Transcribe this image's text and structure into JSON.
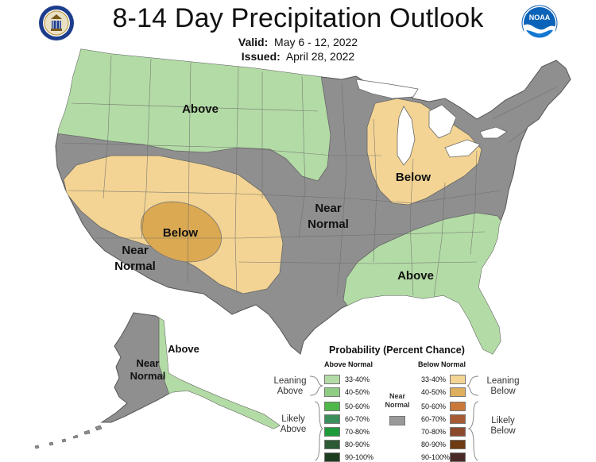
{
  "header": {
    "title": "8-14 Day Precipitation Outlook",
    "valid_label": "Valid:",
    "valid_value": "May 6 - 12, 2022",
    "issued_label": "Issued:",
    "issued_value": "April 28, 2022",
    "left_logo": "doc-seal-icon",
    "right_logo": "noaa-logo-icon"
  },
  "map": {
    "labels": {
      "above_north": "Above",
      "below_west": "Below",
      "near_normal_center_1": "Near",
      "near_normal_center_2": "Normal",
      "below_great_lakes": "Below",
      "near_normal_west_1": "Near",
      "near_normal_west_2": "Normal",
      "above_southeast": "Above",
      "above_alaska": "Above",
      "near_normal_alaska_1": "Near",
      "near_normal_alaska_2": "Normal"
    },
    "colors": {
      "near_normal": "#8f8f8f",
      "above_33_40": "#b3dba6",
      "below_33_40": "#f3d494",
      "below_40_50": "#dba952",
      "water": "#ffffff",
      "borders": "#666666"
    }
  },
  "legend": {
    "title": "Probability (Percent Chance)",
    "above_header": "Above Normal",
    "below_header": "Below Normal",
    "near_label_1": "Near",
    "near_label_2": "Normal",
    "near_color": "#999999",
    "leaning_above_1": "Leaning",
    "leaning_above_2": "Above",
    "likely_above_1": "Likely",
    "likely_above_2": "Above",
    "leaning_below_1": "Leaning",
    "leaning_below_2": "Below",
    "likely_below_1": "Likely",
    "likely_below_2": "Below",
    "above": [
      {
        "range": "33-40%",
        "color": "#b3dba6"
      },
      {
        "range": "40-50%",
        "color": "#8fcc84"
      },
      {
        "range": "50-60%",
        "color": "#4fb84a"
      },
      {
        "range": "60-70%",
        "color": "#3a8f5c"
      },
      {
        "range": "70-80%",
        "color": "#1f9a3a"
      },
      {
        "range": "80-90%",
        "color": "#2b5a34"
      },
      {
        "range": "90-100%",
        "color": "#1c3d1f"
      }
    ],
    "below": [
      {
        "range": "33-40%",
        "color": "#f3d494"
      },
      {
        "range": "40-50%",
        "color": "#deae5c"
      },
      {
        "range": "50-60%",
        "color": "#c97a3a"
      },
      {
        "range": "60-70%",
        "color": "#a75b34"
      },
      {
        "range": "70-80%",
        "color": "#8c4a2c"
      },
      {
        "range": "80-90%",
        "color": "#6e3b12"
      },
      {
        "range": "90-100%",
        "color": "#4a2a26"
      }
    ]
  }
}
